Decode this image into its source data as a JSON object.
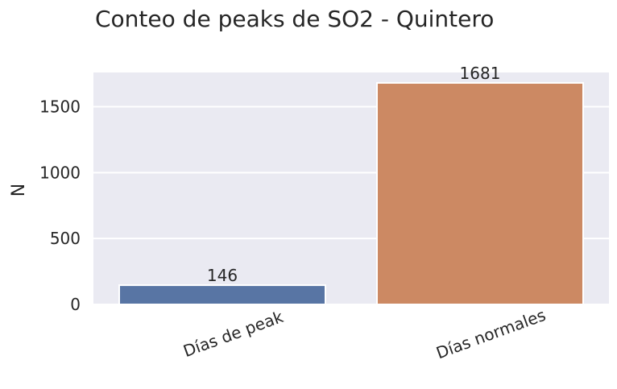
{
  "chart_data": {
    "type": "bar",
    "title": "Conteo de peaks de SO2 - Quintero",
    "xlabel": "",
    "ylabel": "N",
    "categories": [
      "Días de peak",
      "Días normales"
    ],
    "values": [
      146,
      1681
    ],
    "data_labels": [
      "146",
      "1681"
    ],
    "colors": [
      "#5875a4",
      "#cc8963"
    ],
    "ylim": [
      0,
      1760
    ],
    "yticks": [
      0,
      500,
      1000,
      1500
    ],
    "ytick_labels": [
      "0",
      "500",
      "1000",
      "1500"
    ],
    "grid": true,
    "background": "#eaeaf2",
    "x_tick_rotation_deg": -20
  }
}
